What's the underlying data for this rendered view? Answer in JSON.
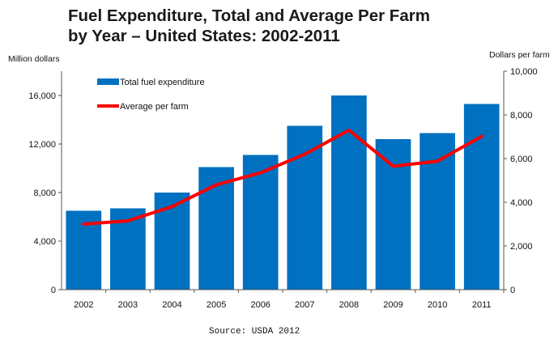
{
  "title_line1": "Fuel Expenditure, Total and Average Per Farm",
  "title_line2": "by Year – United States: 2002-2011",
  "source": "Source: USDA 2012",
  "colors": {
    "bar": "#0070C0",
    "line": "#FF0000"
  },
  "chart_data": {
    "type": "bar",
    "categories": [
      "2002",
      "2003",
      "2004",
      "2005",
      "2006",
      "2007",
      "2008",
      "2009",
      "2010",
      "2011"
    ],
    "ylabel": "Million dollars",
    "y2label": "Dollars per farm",
    "ylim": [
      0,
      18000
    ],
    "y2lim": [
      0,
      10000
    ],
    "yticks": [
      0,
      4000,
      8000,
      12000,
      16000
    ],
    "ytick_labels": [
      "0",
      "4,000",
      "8,000",
      "12,000",
      "16,000"
    ],
    "y2ticks": [
      0,
      2000,
      4000,
      6000,
      8000,
      10000
    ],
    "y2tick_labels": [
      "0",
      "2,000",
      "4,000",
      "6,000",
      "8,000",
      "10,000"
    ],
    "grid": false,
    "legend_position": "top-left",
    "series": [
      {
        "name": "Total fuel expenditure",
        "type": "bar",
        "axis": "left",
        "values": [
          6500,
          6700,
          8000,
          10100,
          11100,
          13500,
          16000,
          12400,
          12900,
          15300
        ]
      },
      {
        "name": "Average per farm",
        "type": "line",
        "axis": "right",
        "values": [
          3000,
          3150,
          3800,
          4800,
          5350,
          6200,
          7300,
          5650,
          5880,
          7020
        ]
      }
    ]
  }
}
